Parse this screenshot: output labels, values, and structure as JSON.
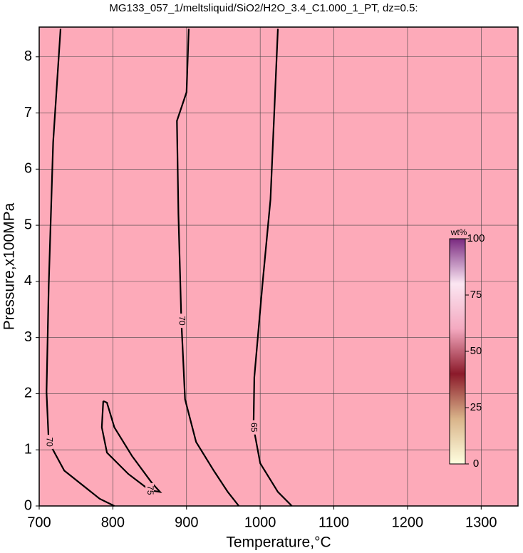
{
  "chart_data": {
    "type": "contour",
    "title": "MG133_057_1/meltsliquid/SiO2/H2O_3.4_C1.000_1_PT, dz=0.5:",
    "x_label": "Temperature,°C",
    "y_label": "Pressure,x100MPa",
    "xlim": [
      700,
      1350
    ],
    "xticks": [
      700,
      800,
      900,
      1000,
      1100,
      1200,
      1300
    ],
    "ylim": [
      0,
      8.53
    ],
    "yticks": [
      0,
      1,
      2,
      3,
      4,
      5,
      6,
      7,
      8
    ],
    "grid": true,
    "fill_color": "#fdaab9",
    "contours": [
      {
        "level": 65,
        "color": "#000000",
        "x": [
          1024,
          1014,
          1003,
          992,
          991,
          1000,
          1024,
          1043
        ],
        "y": [
          8.5,
          5.46,
          3.94,
          2.29,
          1.4,
          0.76,
          0.25,
          0
        ]
      },
      {
        "level": 70,
        "color": "#000000",
        "x": [
          903,
          900,
          887,
          889,
          893,
          898,
          913,
          937,
          956,
          971
        ],
        "y": [
          8.5,
          7.37,
          6.86,
          5.2,
          3.3,
          1.9,
          1.14,
          0.63,
          0.25,
          0
        ]
      },
      {
        "level": 70,
        "color": "#000000",
        "x": [
          729,
          719,
          713,
          710,
          713,
          734,
          782,
          802
        ],
        "y": [
          8.5,
          6.48,
          3.94,
          2.03,
          1.14,
          0.63,
          0.13,
          0
        ]
      },
      {
        "level": 75,
        "color": "#000000",
        "x": [
          787,
          785,
          792,
          821,
          850,
          864,
          853,
          826,
          802,
          792,
          787
        ],
        "y": [
          1.87,
          1.4,
          0.95,
          0.57,
          0.28,
          0.25,
          0.41,
          0.89,
          1.4,
          1.84,
          1.87
        ]
      }
    ],
    "colorbar": {
      "label": "wt%",
      "lim": [
        0,
        100
      ],
      "ticks": [
        0,
        25,
        50,
        75,
        100
      ],
      "colors": [
        "#ffffe0",
        "#d9b48a",
        "#8b1a2a",
        "#f4a9c0",
        "#fbe6f2",
        "#7a2a80"
      ]
    }
  }
}
